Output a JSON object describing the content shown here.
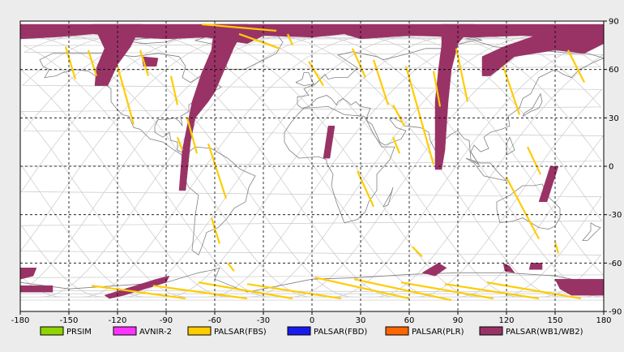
{
  "x_ticks": [
    -180,
    -150,
    -120,
    -90,
    -60,
    -30,
    0,
    30,
    60,
    90,
    120,
    150,
    180
  ],
  "y_ticks": [
    90,
    60,
    30,
    0,
    -30,
    -60,
    -90
  ],
  "legend": [
    {
      "label": "PRSIM",
      "color": "#8fd400"
    },
    {
      "label": "AVNIR-2",
      "color": "#ff33ff"
    },
    {
      "label": "PALSAR(FBS)",
      "color": "#ffcc00"
    },
    {
      "label": "PALSAR(FBD)",
      "color": "#1a1aee"
    },
    {
      "label": "PALSAR(PLR)",
      "color": "#ff6600"
    },
    {
      "label": "PALSAR(WB1/WB2)",
      "color": "#993366"
    }
  ],
  "colors": {
    "background": "#ececec",
    "plot_area": "#ffffff",
    "orbit": "#c8c8c8",
    "coast": "#808080",
    "fbs": "#ffcc00",
    "wb": "#993366"
  },
  "fbs_strips": [
    {
      "a": [
        -152,
        74
      ],
      "b": [
        -146,
        54
      ]
    },
    {
      "a": [
        -138,
        72
      ],
      "b": [
        -133,
        56
      ]
    },
    {
      "a": [
        -106,
        72
      ],
      "b": [
        -101,
        56
      ]
    },
    {
      "a": [
        -87,
        56
      ],
      "b": [
        -83,
        38
      ]
    },
    {
      "a": [
        -120,
        62
      ],
      "b": [
        -110,
        26
      ]
    },
    {
      "a": [
        -83,
        18
      ],
      "b": [
        -80,
        10
      ]
    },
    {
      "a": [
        -64,
        14
      ],
      "b": [
        -53,
        -20
      ]
    },
    {
      "a": [
        -77,
        30
      ],
      "b": [
        -71,
        8
      ]
    },
    {
      "a": [
        -62,
        -32
      ],
      "b": [
        -57,
        -48
      ]
    },
    {
      "a": [
        -52,
        -60
      ],
      "b": [
        -48,
        -65
      ]
    },
    {
      "a": [
        -68,
        88
      ],
      "b": [
        -22,
        84
      ]
    },
    {
      "a": [
        -45,
        82
      ],
      "b": [
        -20,
        73
      ]
    },
    {
      "a": [
        -15,
        82
      ],
      "b": [
        -12,
        75
      ]
    },
    {
      "a": [
        -2,
        65
      ],
      "b": [
        7,
        50
      ]
    },
    {
      "a": [
        25,
        73
      ],
      "b": [
        33,
        55
      ]
    },
    {
      "a": [
        38,
        66
      ],
      "b": [
        47,
        38
      ]
    },
    {
      "a": [
        50,
        38
      ],
      "b": [
        57,
        25
      ]
    },
    {
      "a": [
        50,
        18
      ],
      "b": [
        54,
        8
      ]
    },
    {
      "a": [
        28,
        -3
      ],
      "b": [
        38,
        -25
      ]
    },
    {
      "a": [
        58,
        62
      ],
      "b": [
        75,
        1
      ]
    },
    {
      "a": [
        75,
        59
      ],
      "b": [
        79,
        37
      ]
    },
    {
      "a": [
        89,
        73
      ],
      "b": [
        96,
        40
      ]
    },
    {
      "a": [
        118,
        62
      ],
      "b": [
        128,
        32
      ]
    },
    {
      "a": [
        133,
        12
      ],
      "b": [
        141,
        -5
      ]
    },
    {
      "a": [
        120,
        -7
      ],
      "b": [
        140,
        -45
      ]
    },
    {
      "a": [
        158,
        72
      ],
      "b": [
        168,
        52
      ]
    },
    {
      "a": [
        150,
        -47
      ],
      "b": [
        152,
        -54
      ]
    },
    {
      "a": [
        -136,
        -74
      ],
      "b": [
        -78,
        -82
      ]
    },
    {
      "a": [
        -98,
        -74
      ],
      "b": [
        -40,
        -82
      ]
    },
    {
      "a": [
        -70,
        -72
      ],
      "b": [
        -12,
        -82
      ]
    },
    {
      "a": [
        -40,
        -73
      ],
      "b": [
        18,
        -82
      ]
    },
    {
      "a": [
        2,
        -69
      ],
      "b": [
        60,
        -82
      ]
    },
    {
      "a": [
        26,
        -70
      ],
      "b": [
        86,
        -83
      ]
    },
    {
      "a": [
        55,
        -72
      ],
      "b": [
        112,
        -82
      ]
    },
    {
      "a": [
        82,
        -73
      ],
      "b": [
        140,
        -82
      ]
    },
    {
      "a": [
        108,
        -72
      ],
      "b": [
        166,
        -82
      ]
    },
    {
      "a": [
        62,
        -50
      ],
      "b": [
        68,
        -56
      ]
    }
  ],
  "wb_swaths": [
    {
      "pts": [
        [
          -180,
          88
        ],
        [
          180,
          88
        ],
        [
          180,
          82
        ],
        [
          150,
          80
        ],
        [
          130,
          81
        ],
        [
          100,
          80
        ],
        [
          60,
          81
        ],
        [
          30,
          79
        ],
        [
          20,
          82
        ],
        [
          0,
          80
        ],
        [
          -30,
          81
        ],
        [
          -40,
          76
        ],
        [
          -65,
          80
        ],
        [
          -90,
          79
        ],
        [
          -110,
          80
        ],
        [
          -135,
          82
        ],
        [
          -160,
          80
        ],
        [
          -180,
          79
        ]
      ]
    },
    {
      "pts": [
        [
          -135,
          88
        ],
        [
          -105,
          88
        ],
        [
          -112,
          74
        ],
        [
          -120,
          63
        ],
        [
          -126,
          50
        ],
        [
          -134,
          50
        ],
        [
          -133,
          61
        ],
        [
          -128,
          73
        ]
      ]
    },
    {
      "pts": [
        [
          -60,
          88
        ],
        [
          -40,
          88
        ],
        [
          -48,
          74
        ],
        [
          -54,
          60
        ],
        [
          -60,
          46
        ],
        [
          -64,
          40
        ],
        [
          -72,
          30
        ],
        [
          -75,
          15
        ],
        [
          -78,
          -15
        ],
        [
          -82,
          -15
        ],
        [
          -80,
          10
        ],
        [
          -74,
          40
        ],
        [
          -68,
          58
        ],
        [
          -62,
          72
        ]
      ]
    },
    {
      "pts": [
        [
          -105,
          68
        ],
        [
          -95,
          67
        ],
        [
          -96,
          62
        ],
        [
          -104,
          62
        ]
      ]
    },
    {
      "pts": [
        [
          80,
          88
        ],
        [
          100,
          88
        ],
        [
          90,
          76
        ],
        [
          86,
          60
        ],
        [
          84,
          40
        ],
        [
          82,
          10
        ],
        [
          80,
          -2
        ],
        [
          76,
          -2
        ],
        [
          76,
          20
        ],
        [
          76,
          40
        ],
        [
          78,
          60
        ],
        [
          80,
          75
        ]
      ]
    },
    {
      "pts": [
        [
          10,
          25
        ],
        [
          14,
          25
        ],
        [
          11,
          5
        ],
        [
          7,
          5
        ]
      ]
    },
    {
      "pts": [
        [
          180,
          87
        ],
        [
          155,
          87
        ],
        [
          135,
          80
        ],
        [
          118,
          74
        ],
        [
          105,
          68
        ],
        [
          105,
          56
        ],
        [
          110,
          56
        ],
        [
          125,
          68
        ],
        [
          150,
          72
        ],
        [
          168,
          70
        ],
        [
          180,
          76
        ]
      ]
    },
    {
      "pts": [
        [
          147,
          0
        ],
        [
          152,
          0
        ],
        [
          145,
          -22
        ],
        [
          140,
          -22
        ]
      ]
    },
    {
      "pts": [
        [
          -180,
          -63
        ],
        [
          -170,
          -63
        ],
        [
          -172,
          -68
        ],
        [
          -180,
          -70
        ]
      ]
    },
    {
      "pts": [
        [
          -180,
          -74
        ],
        [
          -160,
          -74
        ],
        [
          -160,
          -78
        ],
        [
          -180,
          -78
        ]
      ]
    },
    {
      "pts": [
        [
          -128,
          -80
        ],
        [
          -96,
          -70
        ],
        [
          -88,
          -68
        ],
        [
          -90,
          -72
        ],
        [
          -116,
          -80
        ],
        [
          -125,
          -82
        ]
      ]
    },
    {
      "pts": [
        [
          68,
          -66
        ],
        [
          78,
          -60
        ],
        [
          83,
          -63
        ],
        [
          76,
          -68
        ]
      ]
    },
    {
      "pts": [
        [
          118,
          -60
        ],
        [
          122,
          -62
        ],
        [
          125,
          -66
        ],
        [
          119,
          -65
        ]
      ]
    },
    {
      "pts": [
        [
          135,
          -60
        ],
        [
          142,
          -60
        ],
        [
          142,
          -64
        ],
        [
          134,
          -64
        ]
      ]
    },
    {
      "pts": [
        [
          150,
          -70
        ],
        [
          180,
          -70
        ],
        [
          180,
          -80
        ],
        [
          160,
          -80
        ],
        [
          153,
          -76
        ]
      ]
    }
  ]
}
